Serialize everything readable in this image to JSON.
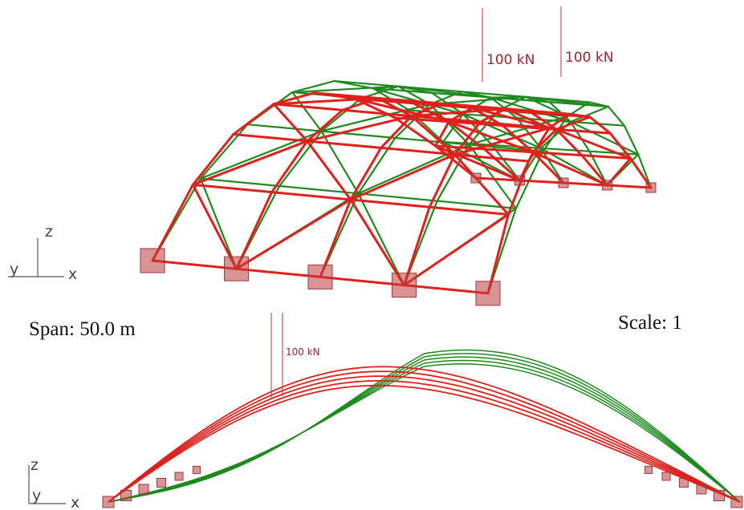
{
  "top_view": {
    "loads": [
      "100 kN",
      "100 kN"
    ],
    "axes": {
      "z": "z",
      "y": "y",
      "x": "x"
    }
  },
  "span": "Span: 50.0 m",
  "scale": "Scale: 1",
  "side_view": {
    "load": "100 kN",
    "axes": {
      "z": "z",
      "y": "y",
      "x": "x"
    }
  }
}
